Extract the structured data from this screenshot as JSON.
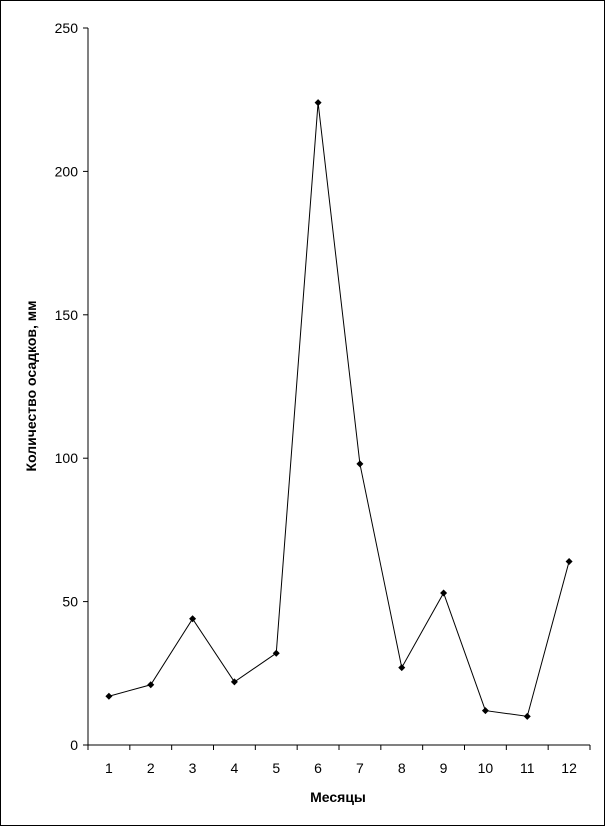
{
  "chart_data": {
    "type": "line",
    "title": "",
    "xlabel": "Месяцы",
    "ylabel": "Количество осадков, мм",
    "ylim": [
      0,
      250
    ],
    "yticks": [
      0,
      50,
      100,
      150,
      200,
      250
    ],
    "categories": [
      "1",
      "2",
      "3",
      "4",
      "5",
      "6",
      "7",
      "8",
      "9",
      "10",
      "11",
      "12"
    ],
    "series": [
      {
        "values": [
          17,
          21,
          44,
          22,
          32,
          224,
          98,
          27,
          53,
          12,
          10,
          64
        ]
      }
    ],
    "grid": false,
    "legend": "none",
    "colors": {
      "line": "#000000",
      "marker": "#000000",
      "axis": "#000000"
    }
  }
}
